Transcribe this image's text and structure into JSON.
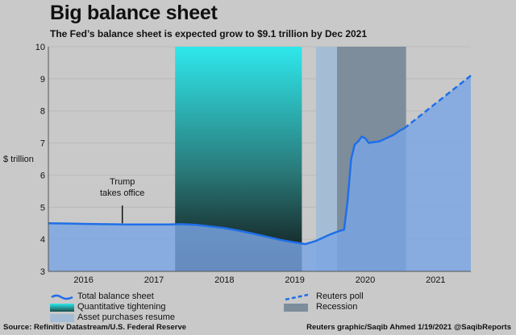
{
  "header": {
    "title": "Big balance sheet",
    "subtitle": "The Fed’s balance sheet is expected grow to $9.1 trillion by Dec 2021"
  },
  "footer": {
    "source": "Source: Refinitiv Datastream/U.S. Federal Reserve",
    "credit": "Reuters graphic/Saqib Ahmed 1/19/2021 @SaqibReports"
  },
  "legend": {
    "total": "Total balance sheet",
    "qt": "Quantitative tightening",
    "asset": "Asset purchases resume",
    "poll": "Reuters poll",
    "recession": "Recession"
  },
  "chart_data": {
    "type": "area",
    "ylabel": "$ trillion",
    "ylim": [
      3,
      10
    ],
    "xlim": [
      2015.5,
      2021.5
    ],
    "y_ticks": [
      3,
      4,
      5,
      6,
      7,
      8,
      9,
      10
    ],
    "x_ticks": [
      {
        "label": "2016",
        "x": 2016.0
      },
      {
        "label": "2017",
        "x": 2017.0
      },
      {
        "label": "2018",
        "x": 2018.0
      },
      {
        "label": "2019",
        "x": 2019.0
      },
      {
        "label": "2020",
        "x": 2020.0
      },
      {
        "label": "2021",
        "x": 2021.0
      }
    ],
    "series": [
      {
        "name": "Total balance sheet",
        "style": "solid",
        "x": [
          2015.5,
          2015.8,
          2016.0,
          2016.3,
          2016.6,
          2016.9,
          2017.2,
          2017.4,
          2017.6,
          2017.8,
          2018.0,
          2018.2,
          2018.4,
          2018.6,
          2018.8,
          2019.0,
          2019.15,
          2019.3,
          2019.5,
          2019.62,
          2019.7,
          2019.75,
          2019.8,
          2019.85,
          2019.9,
          2019.95,
          2020.0,
          2020.05,
          2020.1,
          2020.2,
          2020.3,
          2020.4,
          2020.5,
          2020.55
        ],
        "y": [
          4.5,
          4.49,
          4.48,
          4.47,
          4.46,
          4.46,
          4.46,
          4.47,
          4.45,
          4.4,
          4.35,
          4.27,
          4.18,
          4.08,
          3.98,
          3.9,
          3.85,
          3.95,
          4.15,
          4.25,
          4.3,
          5.2,
          6.5,
          6.95,
          7.05,
          7.2,
          7.15,
          7.0,
          7.02,
          7.05,
          7.15,
          7.25,
          7.4,
          7.45
        ]
      },
      {
        "name": "Reuters poll",
        "style": "dashed",
        "x": [
          2020.55,
          2021.5
        ],
        "y": [
          7.45,
          9.1
        ]
      }
    ],
    "shaded_regions": [
      {
        "name": "Quantitative tightening",
        "x": [
          2017.3,
          2019.1
        ],
        "color": "#2ee8ec"
      },
      {
        "name": "Asset purchases resume",
        "x": [
          2019.3,
          2019.6
        ],
        "color": "#a4bdd4"
      },
      {
        "name": "Recession",
        "x": [
          2019.6,
          2020.58
        ],
        "color": "#7d8d9c"
      }
    ],
    "annotations": [
      {
        "text_lines": [
          "Trump",
          "takes office"
        ],
        "x": 2016.55,
        "y": 4.5
      }
    ],
    "colors": {
      "line": "#1f6fe8",
      "area": "#7aa6e4",
      "background": "#c9c9c9"
    }
  }
}
